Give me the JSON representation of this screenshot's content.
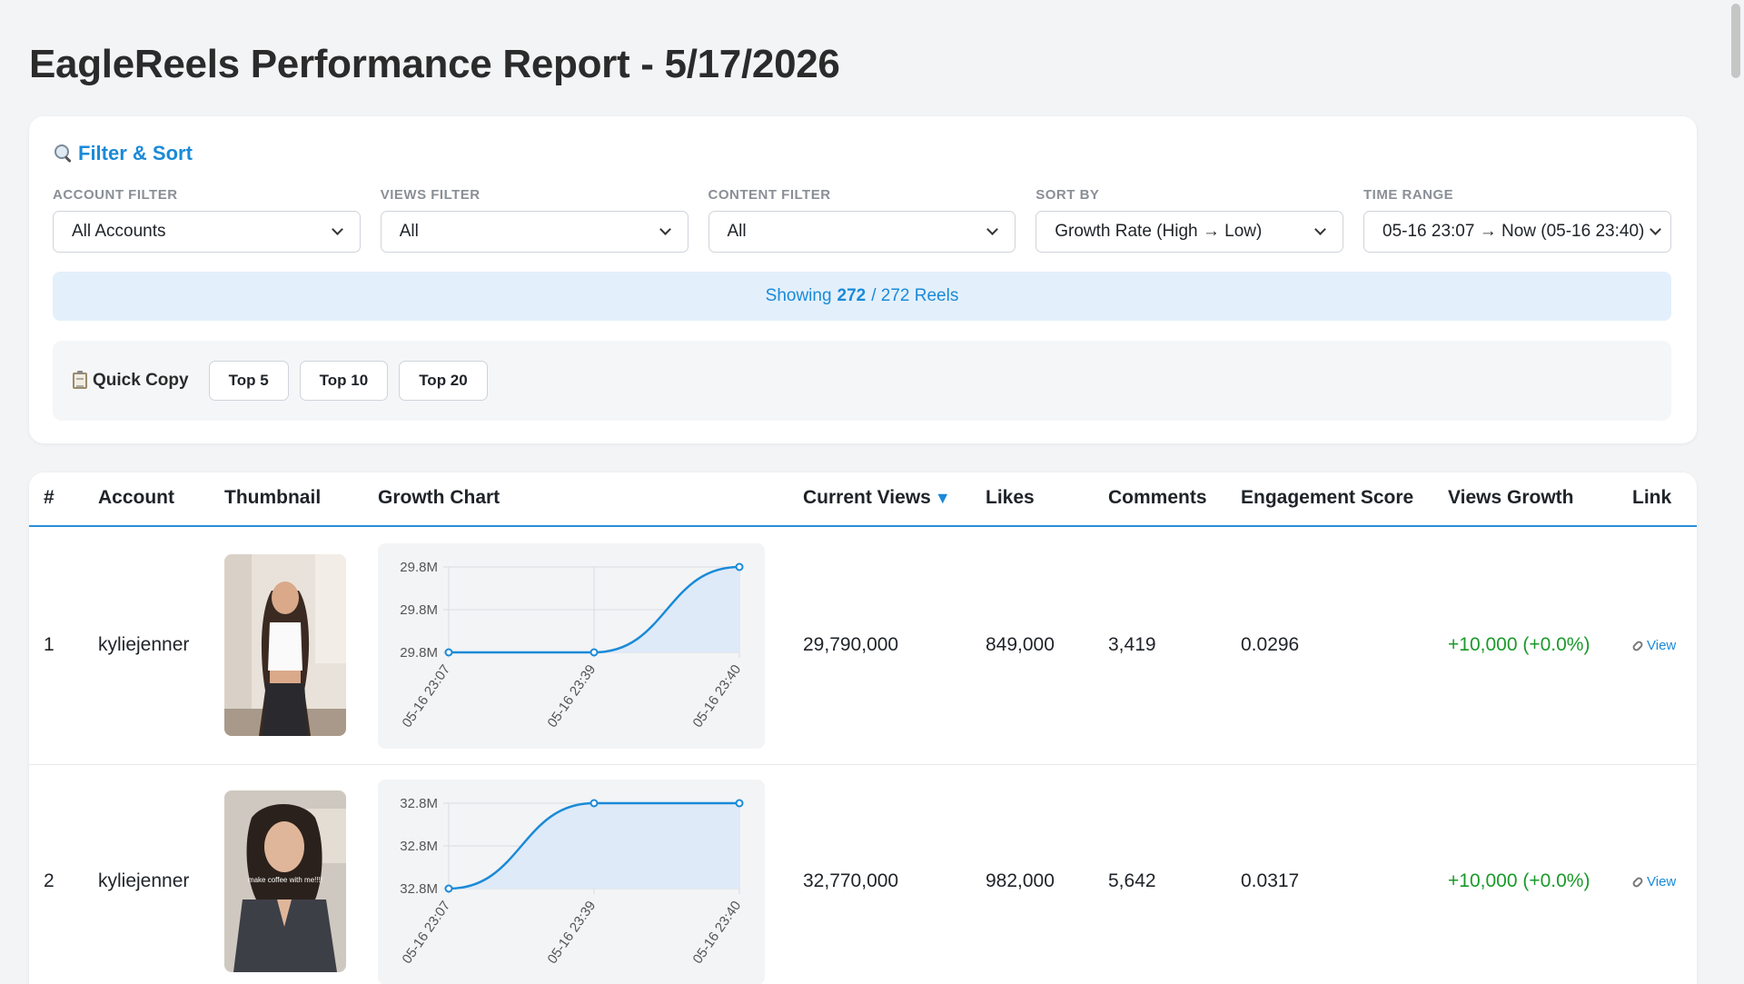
{
  "page_title": "EagleReels Performance Report - 5/17/2026",
  "filter_card": {
    "title": "Filter & Sort",
    "filters": [
      {
        "label": "ACCOUNT FILTER",
        "value": "All Accounts"
      },
      {
        "label": "VIEWS FILTER",
        "value": "All"
      },
      {
        "label": "CONTENT FILTER",
        "value": "All"
      },
      {
        "label": "SORT BY",
        "value": "Growth Rate (High → Low)"
      },
      {
        "label": "TIME RANGE",
        "value": "05-16 23:07 → Now (05-16 23:40)"
      }
    ],
    "showing": {
      "prefix": "Showing",
      "count": "272",
      "suffix": "/ 272 Reels"
    },
    "quick_copy": {
      "label": "Quick Copy",
      "buttons": [
        "Top 5",
        "Top 10",
        "Top 20"
      ]
    }
  },
  "table": {
    "columns": [
      "#",
      "Account",
      "Thumbnail",
      "Growth Chart",
      "Current Views",
      "Likes",
      "Comments",
      "Engagement Score",
      "Views Growth",
      "Link"
    ],
    "sort_indicator": "▼",
    "link_text": "View",
    "rows": [
      {
        "rank": "1",
        "account": "kyliejenner",
        "current_views": "29,790,000",
        "likes": "849,000",
        "comments": "3,419",
        "engagement": "0.0296",
        "views_growth": "+10,000 (+0.0%)",
        "thumbnail_caption": "",
        "chart": {
          "y_ticks": [
            "29.8M",
            "29.8M",
            "29.8M"
          ],
          "x_ticks": [
            "05-16 23:07",
            "05-16 23:39",
            "05-16 23:40"
          ],
          "y": [
            29780000,
            29780000,
            29790000
          ],
          "ylim": [
            29780000,
            29790000
          ]
        }
      },
      {
        "rank": "2",
        "account": "kyliejenner",
        "current_views": "32,770,000",
        "likes": "982,000",
        "comments": "5,642",
        "engagement": "0.0317",
        "views_growth": "+10,000 (+0.0%)",
        "thumbnail_caption": "make coffee with me!!!!",
        "chart": {
          "y_ticks": [
            "32.8M",
            "32.8M",
            "32.8M"
          ],
          "x_ticks": [
            "05-16 23:07",
            "05-16 23:39",
            "05-16 23:40"
          ],
          "y": [
            32760000,
            32770000,
            32770000
          ],
          "ylim": [
            32760000,
            32770000
          ]
        }
      }
    ]
  },
  "colors": {
    "accent": "#1a8ad8",
    "growth": "#1a9a2a"
  }
}
